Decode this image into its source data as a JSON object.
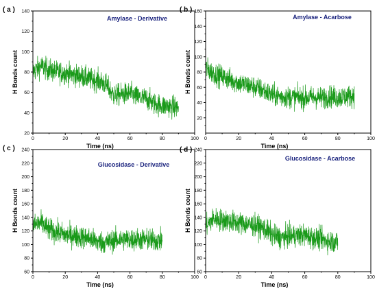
{
  "colors": {
    "line": "#1a9a1a",
    "title": "#1a237e",
    "axis": "#000000"
  },
  "chart_data": [
    {
      "type": "line",
      "panel_label": "( a )",
      "title": "Amylase - Derivative",
      "xlabel": "Time (ns)",
      "ylabel": "H Bonds count",
      "xlim": [
        0,
        100
      ],
      "ylim": [
        20,
        140
      ],
      "xticks": [
        "0",
        "20",
        "40",
        "60",
        "80",
        "100"
      ],
      "yticks": [
        "20",
        "40",
        "60",
        "80",
        "100",
        "120",
        "140"
      ],
      "grid": false,
      "series": [
        {
          "x": [
            0,
            5,
            10,
            15,
            20,
            25,
            30,
            35,
            40,
            45,
            50,
            55,
            60,
            65,
            70,
            75,
            80,
            85,
            90
          ],
          "values": [
            80,
            86,
            82,
            80,
            79,
            77,
            76,
            73,
            72,
            68,
            57,
            58,
            59,
            55,
            54,
            49,
            47,
            46,
            45
          ]
        }
      ]
    },
    {
      "type": "line",
      "panel_label": "( b )",
      "title": "Amylase - Acarbose",
      "xlabel": "Time (ns)",
      "ylabel": "H Bonds count",
      "xlim": [
        0,
        100
      ],
      "ylim": [
        0,
        160
      ],
      "xticks": [
        "0",
        "20",
        "40",
        "60",
        "80",
        "100"
      ],
      "yticks": [
        "20",
        "40",
        "60",
        "80",
        "100",
        "120",
        "140",
        "160"
      ],
      "grid": false,
      "series": [
        {
          "x": [
            0,
            5,
            10,
            15,
            20,
            25,
            30,
            35,
            40,
            45,
            50,
            55,
            60,
            65,
            70,
            75,
            80,
            85,
            90
          ],
          "values": [
            85,
            78,
            74,
            70,
            66,
            63,
            60,
            56,
            50,
            48,
            47,
            47,
            46,
            47,
            46,
            48,
            47,
            48,
            49
          ]
        }
      ]
    },
    {
      "type": "line",
      "panel_label": "( c )",
      "title": "Glucosidase - Derivative",
      "xlabel": "Time (ns)",
      "ylabel": "H Bonds count",
      "xlim": [
        0,
        100
      ],
      "ylim": [
        60,
        240
      ],
      "xticks": [
        "0",
        "20",
        "40",
        "60",
        "80",
        "100"
      ],
      "yticks": [
        "60",
        "80",
        "100",
        "120",
        "140",
        "160",
        "180",
        "200",
        "220",
        "240"
      ],
      "grid": false,
      "series": [
        {
          "x": [
            0,
            5,
            10,
            15,
            20,
            25,
            30,
            35,
            40,
            45,
            50,
            55,
            60,
            65,
            70,
            75,
            80
          ],
          "values": [
            128,
            132,
            122,
            118,
            114,
            113,
            111,
            109,
            104,
            103,
            106,
            108,
            107,
            108,
            107,
            106,
            106
          ]
        }
      ]
    },
    {
      "type": "line",
      "panel_label": "( d )",
      "title": "Glucosidase - Acarbose",
      "xlabel": "Time (ns)",
      "ylabel": "H Bonds count",
      "xlim": [
        0,
        100
      ],
      "ylim": [
        60,
        240
      ],
      "xticks": [
        "0",
        "20",
        "40",
        "60",
        "80",
        "100"
      ],
      "yticks": [
        "60",
        "80",
        "100",
        "120",
        "140",
        "160",
        "180",
        "200",
        "220",
        "240"
      ],
      "grid": false,
      "series": [
        {
          "x": [
            0,
            5,
            10,
            15,
            20,
            25,
            30,
            35,
            40,
            45,
            50,
            55,
            60,
            65,
            70,
            75,
            80
          ],
          "values": [
            128,
            138,
            136,
            134,
            132,
            130,
            128,
            124,
            115,
            110,
            112,
            113,
            114,
            110,
            108,
            105,
            104
          ]
        }
      ]
    }
  ]
}
